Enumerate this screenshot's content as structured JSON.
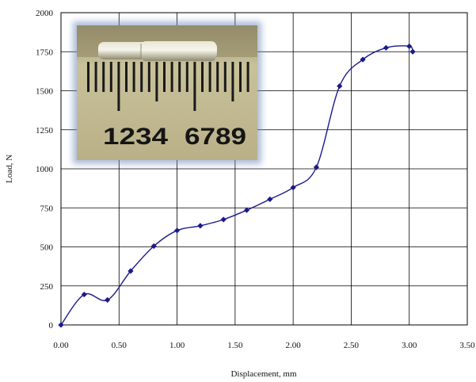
{
  "chart_data": {
    "type": "line",
    "xlabel": "Displacement, mm",
    "ylabel": "Load, N",
    "xlim": [
      0,
      3.5
    ],
    "ylim": [
      0,
      2000
    ],
    "grid": true,
    "legend": "none",
    "line_color": "#1a1a8c",
    "x_ticks": [
      "0.00",
      "0.50",
      "1.00",
      "1.50",
      "2.00",
      "2.50",
      "3.00",
      "3.50"
    ],
    "y_ticks": [
      "0",
      "250",
      "500",
      "750",
      "1000",
      "1250",
      "1500",
      "1750",
      "2000"
    ],
    "series": [
      {
        "x": [
          0.0,
          0.2,
          0.4,
          0.6,
          0.8,
          1.0,
          1.2,
          1.4,
          1.6,
          1.8,
          2.0,
          2.2,
          2.4,
          2.6,
          2.8,
          3.0,
          3.03
        ],
        "y": [
          0,
          195,
          160,
          345,
          505,
          605,
          635,
          675,
          735,
          805,
          880,
          1010,
          1530,
          1700,
          1775,
          1785,
          1750
        ]
      }
    ]
  },
  "inset_photo": {
    "ruler_labels": [
      "1234",
      "6789"
    ]
  }
}
